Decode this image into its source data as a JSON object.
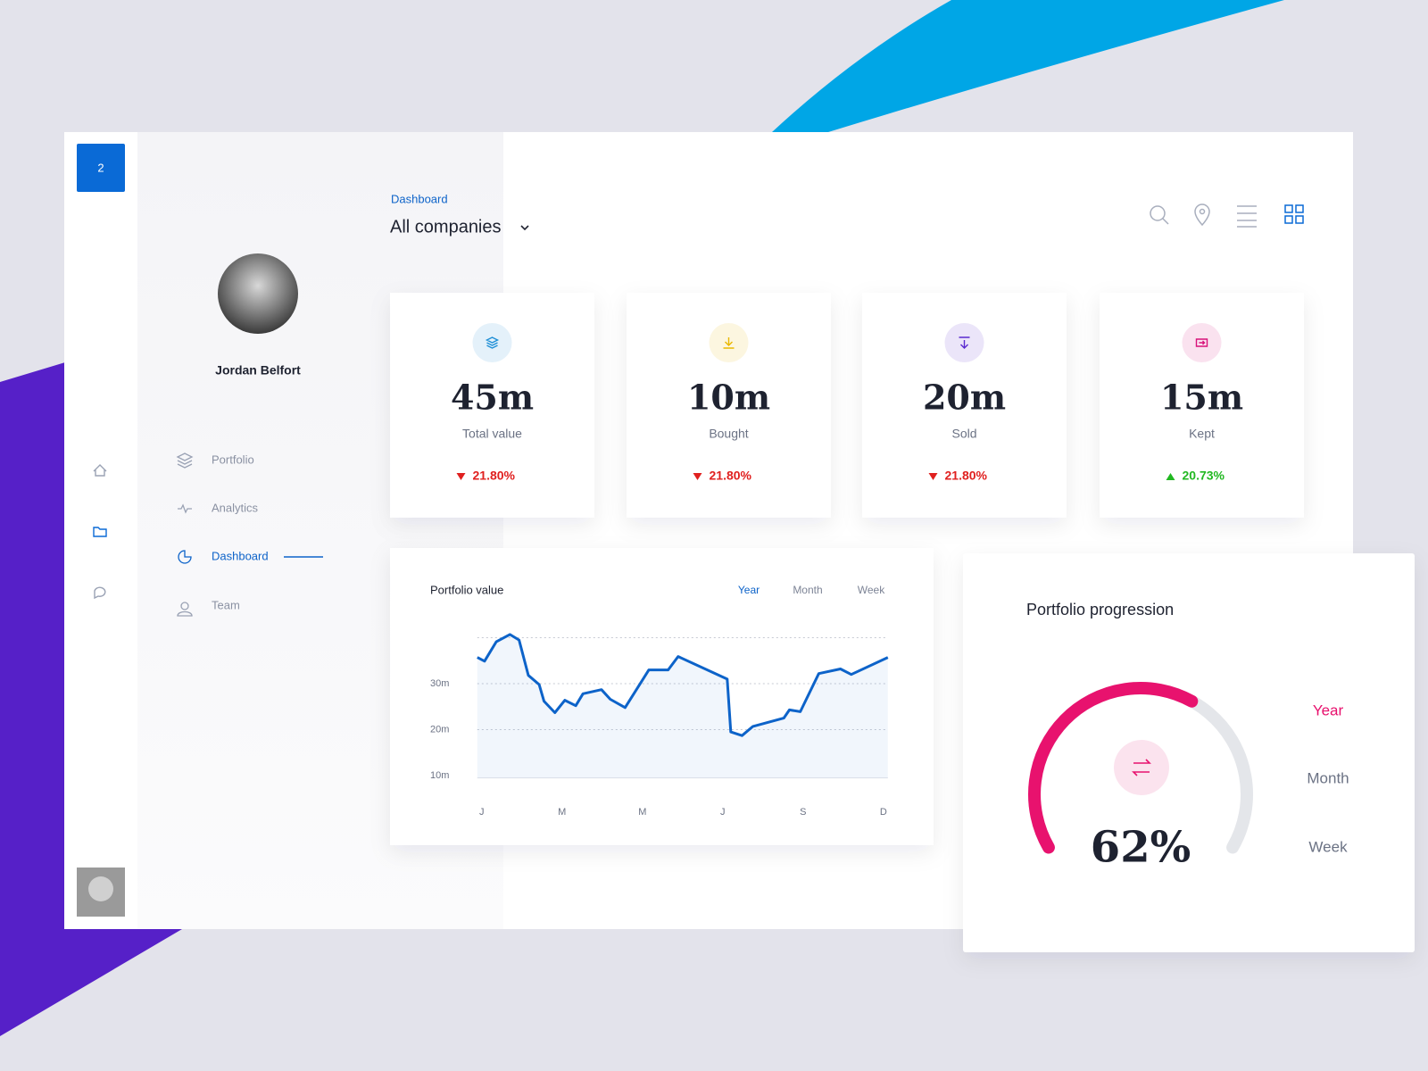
{
  "sidebar": {
    "badge": "2"
  },
  "profile": {
    "name": "Jordan Belfort"
  },
  "nav": {
    "items": [
      "Portfolio",
      "Analytics",
      "Dashboard",
      "Team"
    ],
    "active": 2
  },
  "header": {
    "breadcrumb": "Dashboard",
    "title": "All companies"
  },
  "stats": [
    {
      "value": "45m",
      "label": "Total value",
      "change": "21.80%",
      "trend": "down",
      "color": "#1e8fd6"
    },
    {
      "value": "10m",
      "label": "Bought",
      "change": "21.80%",
      "trend": "down",
      "color": "#e9b800"
    },
    {
      "value": "20m",
      "label": "Sold",
      "change": "21.80%",
      "trend": "down",
      "color": "#5b2bd0"
    },
    {
      "value": "15m",
      "label": "Kept",
      "change": "20.73%",
      "trend": "up",
      "color": "#d8127a"
    }
  ],
  "chart_data": {
    "type": "line",
    "title": "Portfolio value",
    "tabs": [
      "Year",
      "Month",
      "Week"
    ],
    "active_tab": 0,
    "x": [
      0.89,
      1.07,
      1.36,
      1.7,
      1.93,
      2.16,
      2.43,
      2.55,
      2.82,
      3.07,
      3.34,
      3.52,
      3.98,
      4.2,
      4.57,
      5.16,
      5.64,
      5.89,
      7.11,
      7.2,
      7.48,
      7.75,
      8.52,
      8.66,
      8.93,
      9.39,
      9.93,
      10.2,
      11.11
    ],
    "values": [
      35.7,
      34.9,
      39.1,
      40.7,
      39.5,
      31.8,
      29.8,
      26.2,
      23.7,
      26.4,
      25.2,
      27.8,
      28.7,
      26.6,
      24.8,
      33.0,
      33.0,
      35.9,
      31.0,
      19.5,
      18.7,
      20.7,
      22.5,
      24.3,
      23.9,
      32.2,
      33.2,
      32.0,
      35.7
    ],
    "color": "#0d63c9",
    "xlim": [
      0.89,
      11.11
    ],
    "xticks": [
      {
        "value": 1,
        "label": "J"
      },
      {
        "value": 3,
        "label": "M"
      },
      {
        "value": 5,
        "label": "M"
      },
      {
        "value": 7,
        "label": "J"
      },
      {
        "value": 9,
        "label": "S"
      },
      {
        "value": 11,
        "label": "D"
      }
    ],
    "ylim": [
      9.5,
      40
    ],
    "yticks": [
      {
        "value": 10,
        "label": "10m"
      },
      {
        "value": 20,
        "label": "20m"
      },
      {
        "value": 30,
        "label": "30m"
      }
    ],
    "grid": true
  },
  "progression": {
    "title": "Portfolio progression",
    "value": 62,
    "label": "62%",
    "tabs": [
      "Year",
      "Month",
      "Week"
    ],
    "active_tab": 0,
    "color": "#e8126e"
  }
}
